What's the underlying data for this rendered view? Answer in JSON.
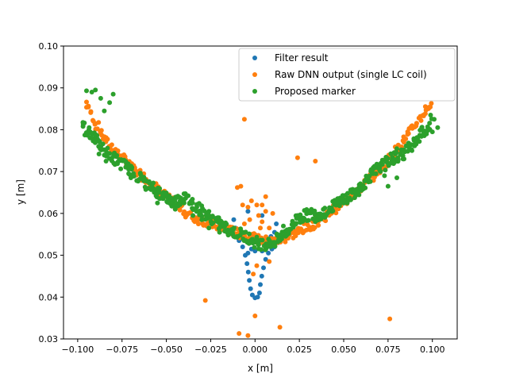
{
  "chart_data": {
    "type": "scatter",
    "title": "",
    "xlabel": "x [m]",
    "ylabel": "y [m]",
    "xlim": [
      -0.108,
      0.114
    ],
    "ylim": [
      0.03,
      0.1
    ],
    "xticks": [
      -0.1,
      -0.075,
      -0.05,
      -0.025,
      0.0,
      0.025,
      0.05,
      0.075,
      0.1
    ],
    "xtick_labels": [
      "−0.100",
      "−0.075",
      "−0.050",
      "−0.025",
      "0.000",
      "0.025",
      "0.050",
      "0.075",
      "0.100"
    ],
    "yticks": [
      0.03,
      0.04,
      0.05,
      0.06,
      0.07,
      0.08,
      0.09,
      0.1
    ],
    "ytick_labels": [
      "0.03",
      "0.04",
      "0.05",
      "0.06",
      "0.07",
      "0.08",
      "0.09",
      "0.10"
    ],
    "grid": false,
    "legend_position": "upper right",
    "series": [
      {
        "name": "Filter result",
        "color": "#1f77b4",
        "marker": "circle",
        "points": [
          [
            -0.013,
            0.0555
          ],
          [
            -0.011,
            0.0545
          ],
          [
            -0.009,
            0.0535
          ],
          [
            -0.007,
            0.052
          ],
          [
            -0.0055,
            0.05
          ],
          [
            -0.0045,
            0.048
          ],
          [
            -0.0038,
            0.046
          ],
          [
            -0.0032,
            0.044
          ],
          [
            -0.0025,
            0.042
          ],
          [
            -0.0015,
            0.0405
          ],
          [
            0.0,
            0.0398
          ],
          [
            0.0015,
            0.04
          ],
          [
            0.0025,
            0.041
          ],
          [
            0.003,
            0.043
          ],
          [
            0.0038,
            0.045
          ],
          [
            0.0048,
            0.047
          ],
          [
            0.006,
            0.049
          ],
          [
            0.0075,
            0.0505
          ],
          [
            0.0095,
            0.0515
          ],
          [
            0.011,
            0.052
          ],
          [
            0.013,
            0.053
          ],
          [
            0.0,
            0.051
          ],
          [
            -0.002,
            0.0515
          ],
          [
            0.004,
            0.051
          ],
          [
            -0.004,
            0.0505
          ],
          [
            0.007,
            0.0525
          ],
          [
            -0.006,
            0.0535
          ],
          [
            0.009,
            0.0545
          ],
          [
            0.011,
            0.0555
          ],
          [
            -0.011,
            0.0565
          ],
          [
            0.012,
            0.0575
          ],
          [
            -0.012,
            0.0585
          ],
          [
            0.004,
            0.0595
          ],
          [
            -0.004,
            0.0605
          ]
        ]
      },
      {
        "name": "Raw DNN output (single LC coil)",
        "color": "#ff7f0e",
        "marker": "circle",
        "points": [
          [
            -0.01,
            0.0662
          ],
          [
            -0.008,
            0.0665
          ],
          [
            -0.006,
            0.0575
          ],
          [
            -0.004,
            0.0615
          ],
          [
            -0.002,
            0.063
          ],
          [
            0.0,
            0.0545
          ],
          [
            0.002,
            0.0595
          ],
          [
            0.004,
            0.062
          ],
          [
            0.006,
            0.064
          ],
          [
            0.004,
            0.058
          ],
          [
            -0.003,
            0.0585
          ],
          [
            0.008,
            0.0565
          ],
          [
            0.01,
            0.06
          ],
          [
            -0.006,
            0.0825
          ],
          [
            0.024,
            0.0733
          ],
          [
            0.034,
            0.0725
          ],
          [
            -0.028,
            0.0392
          ],
          [
            -0.009,
            0.0313
          ],
          [
            -0.004,
            0.0308
          ],
          [
            0.0,
            0.0355
          ],
          [
            0.014,
            0.0328
          ],
          [
            0.076,
            0.0348
          ],
          [
            0.001,
            0.0475
          ],
          [
            -0.001,
            0.0455
          ],
          [
            0.003,
            0.0565
          ],
          [
            0.008,
            0.0485
          ],
          [
            0.001,
            0.062
          ],
          [
            -0.007,
            0.062
          ],
          [
            0.006,
            0.0605
          ]
        ]
      },
      {
        "name": "Proposed marker",
        "color": "#2ca02c",
        "marker": "circle",
        "points": [
          [
            -0.095,
            0.0893
          ],
          [
            -0.092,
            0.089
          ],
          [
            -0.09,
            0.0895
          ],
          [
            -0.087,
            0.0875
          ],
          [
            -0.085,
            0.0845
          ],
          [
            -0.08,
            0.0885
          ],
          [
            -0.082,
            0.0865
          ],
          [
            -0.097,
            0.0808
          ],
          [
            -0.088,
            0.0742
          ],
          [
            -0.084,
            0.0725
          ],
          [
            -0.079,
            0.0717
          ],
          [
            -0.072,
            0.0715
          ],
          [
            -0.07,
            0.0685
          ],
          [
            -0.06,
            0.066
          ],
          [
            -0.052,
            0.064
          ],
          [
            -0.055,
            0.0625
          ],
          [
            -0.045,
            0.061
          ],
          [
            -0.04,
            0.0625
          ],
          [
            -0.035,
            0.0595
          ],
          [
            -0.03,
            0.0585
          ],
          [
            -0.026,
            0.0565
          ],
          [
            -0.02,
            0.0555
          ],
          [
            -0.012,
            0.0545
          ],
          [
            0.002,
            0.0525
          ],
          [
            0.014,
            0.0535
          ],
          [
            0.016,
            0.057
          ],
          [
            0.024,
            0.0595
          ],
          [
            0.034,
            0.058
          ],
          [
            0.045,
            0.0625
          ],
          [
            0.052,
            0.0625
          ],
          [
            0.06,
            0.0655
          ],
          [
            0.064,
            0.0675
          ],
          [
            0.066,
            0.0695
          ],
          [
            0.071,
            0.072
          ],
          [
            0.073,
            0.069
          ],
          [
            0.075,
            0.0665
          ],
          [
            0.08,
            0.0685
          ],
          [
            0.08,
            0.0755
          ],
          [
            0.084,
            0.073
          ],
          [
            0.09,
            0.0765
          ],
          [
            0.094,
            0.0805
          ],
          [
            0.099,
            0.0835
          ],
          [
            0.1,
            0.0795
          ],
          [
            0.103,
            0.0805
          ],
          [
            0.101,
            0.0825
          ]
        ]
      }
    ],
    "band_samples": {
      "orange_band": [
        [
          -0.095,
          0.0865
        ],
        [
          -0.09,
          0.0815
        ],
        [
          -0.085,
          0.078
        ],
        [
          -0.08,
          0.0755
        ],
        [
          -0.075,
          0.0732
        ],
        [
          -0.07,
          0.0712
        ],
        [
          -0.065,
          0.0695
        ],
        [
          -0.06,
          0.0678
        ],
        [
          -0.055,
          0.066
        ],
        [
          -0.05,
          0.064
        ],
        [
          -0.045,
          0.0622
        ],
        [
          -0.04,
          0.0605
        ],
        [
          -0.035,
          0.059
        ],
        [
          -0.03,
          0.0583
        ],
        [
          -0.025,
          0.0577
        ],
        [
          -0.02,
          0.0568
        ],
        [
          -0.015,
          0.056
        ],
        [
          -0.01,
          0.0553
        ],
        [
          -0.005,
          0.0545
        ],
        [
          0.0,
          0.054
        ],
        [
          0.005,
          0.0535
        ],
        [
          0.01,
          0.0533
        ],
        [
          0.015,
          0.0538
        ],
        [
          0.02,
          0.0548
        ],
        [
          0.025,
          0.0558
        ],
        [
          0.03,
          0.0568
        ],
        [
          0.035,
          0.0578
        ],
        [
          0.04,
          0.0595
        ],
        [
          0.045,
          0.0612
        ],
        [
          0.05,
          0.0628
        ],
        [
          0.055,
          0.0645
        ],
        [
          0.06,
          0.0663
        ],
        [
          0.065,
          0.0685
        ],
        [
          0.07,
          0.0705
        ],
        [
          0.075,
          0.0728
        ],
        [
          0.08,
          0.0752
        ],
        [
          0.085,
          0.078
        ],
        [
          0.09,
          0.081
        ],
        [
          0.095,
          0.084
        ],
        [
          0.1,
          0.0868
        ]
      ],
      "green_band": [
        [
          -0.097,
          0.0805
        ],
        [
          -0.093,
          0.0795
        ],
        [
          -0.09,
          0.0778
        ],
        [
          -0.087,
          0.076
        ],
        [
          -0.083,
          0.0742
        ],
        [
          -0.078,
          0.0728
        ],
        [
          -0.073,
          0.0712
        ],
        [
          -0.068,
          0.0695
        ],
        [
          -0.063,
          0.0678
        ],
        [
          -0.058,
          0.066
        ],
        [
          -0.054,
          0.065
        ],
        [
          -0.05,
          0.0638
        ],
        [
          -0.047,
          0.0627
        ],
        [
          -0.043,
          0.0632
        ],
        [
          -0.04,
          0.0638
        ],
        [
          -0.036,
          0.0628
        ],
        [
          -0.032,
          0.0612
        ],
        [
          -0.028,
          0.0598
        ],
        [
          -0.024,
          0.0586
        ],
        [
          -0.02,
          0.0574
        ],
        [
          -0.016,
          0.0565
        ],
        [
          -0.012,
          0.0556
        ],
        [
          -0.008,
          0.0549
        ],
        [
          -0.004,
          0.0542
        ],
        [
          0.0,
          0.0532
        ],
        [
          0.004,
          0.0527
        ],
        [
          0.008,
          0.0527
        ],
        [
          0.012,
          0.0534
        ],
        [
          0.016,
          0.055
        ],
        [
          0.02,
          0.0567
        ],
        [
          0.024,
          0.0586
        ],
        [
          0.028,
          0.0595
        ],
        [
          0.032,
          0.0598
        ],
        [
          0.036,
          0.0597
        ],
        [
          0.04,
          0.0605
        ],
        [
          0.044,
          0.0618
        ],
        [
          0.048,
          0.0632
        ],
        [
          0.052,
          0.0638
        ],
        [
          0.056,
          0.065
        ],
        [
          0.06,
          0.0665
        ],
        [
          0.064,
          0.0688
        ],
        [
          0.068,
          0.0702
        ],
        [
          0.072,
          0.0715
        ],
        [
          0.076,
          0.0728
        ],
        [
          0.08,
          0.0735
        ],
        [
          0.084,
          0.0746
        ],
        [
          0.088,
          0.0763
        ],
        [
          0.092,
          0.0782
        ],
        [
          0.096,
          0.0798
        ],
        [
          0.1,
          0.0815
        ]
      ]
    }
  }
}
